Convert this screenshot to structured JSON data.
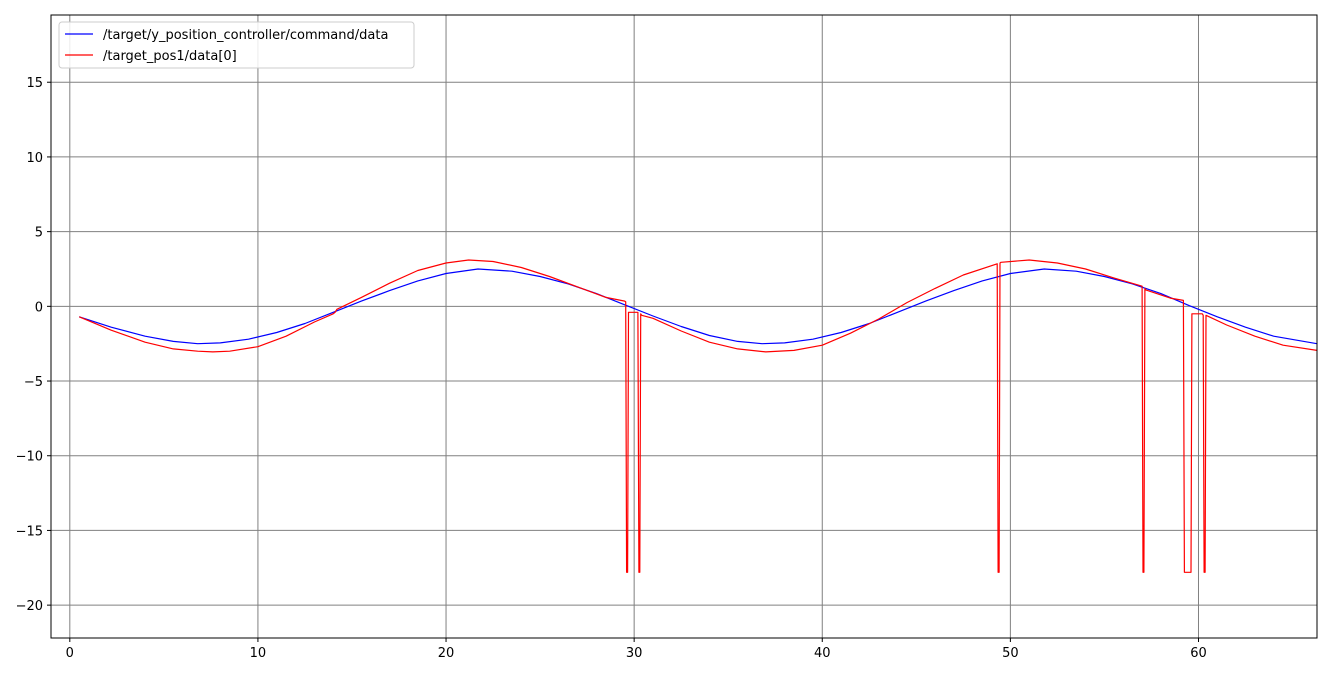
{
  "chart_data": {
    "type": "line",
    "title": "",
    "xlabel": "",
    "ylabel": "",
    "xlim": [
      -1,
      66.3
    ],
    "ylim": [
      -22.2,
      19.5
    ],
    "x_ticks": [
      0,
      10,
      20,
      30,
      40,
      50,
      60
    ],
    "x_tick_labels": [
      "0",
      "10",
      "20",
      "30",
      "40",
      "50",
      "60"
    ],
    "y_ticks": [
      15,
      10,
      5,
      0,
      -5,
      -10,
      -15,
      -20
    ],
    "y_tick_labels": [
      "15",
      "10",
      "5",
      "0",
      "−5",
      "−10",
      "−15",
      "−20"
    ],
    "grid": true,
    "grid_color": "#808080",
    "legend_position": "top-left",
    "series": [
      {
        "name": "/target/y_position_controller/command/data",
        "color": "#0000ff",
        "x": [
          0.5,
          2.2,
          4.0,
          5.5,
          6.8,
          8.0,
          9.5,
          11.0,
          12.5,
          14.0,
          15.5,
          17.0,
          18.5,
          20.0,
          21.7,
          23.5,
          25.0,
          26.5,
          28.0,
          29.5,
          31.0,
          32.5,
          34.0,
          35.5,
          36.8,
          38.0,
          39.5,
          41.0,
          42.5,
          44.0,
          45.5,
          47.0,
          48.5,
          50.0,
          51.8,
          53.5,
          55.0,
          56.5,
          58.0,
          59.5,
          61.0,
          62.5,
          64.0,
          66.3
        ],
        "y": [
          -0.7,
          -1.4,
          -2.0,
          -2.35,
          -2.5,
          -2.45,
          -2.2,
          -1.75,
          -1.15,
          -0.4,
          0.35,
          1.05,
          1.7,
          2.2,
          2.5,
          2.35,
          2.0,
          1.5,
          0.85,
          0.1,
          -0.65,
          -1.35,
          -1.95,
          -2.35,
          -2.5,
          -2.45,
          -2.2,
          -1.75,
          -1.15,
          -0.4,
          0.35,
          1.05,
          1.7,
          2.2,
          2.5,
          2.35,
          2.0,
          1.5,
          0.85,
          0.05,
          -0.7,
          -1.4,
          -2.0,
          -2.5
        ]
      },
      {
        "name": "/target_pos1/data[0]",
        "color": "#ff0000",
        "x": [
          0.5,
          2.2,
          4.0,
          5.5,
          6.8,
          7.6,
          8.5,
          10.0,
          11.5,
          13.0,
          14.0,
          14.1,
          14.2,
          15.5,
          17.0,
          18.5,
          20.0,
          21.2,
          22.5,
          24.0,
          25.5,
          27.0,
          28.5,
          29.5,
          29.55,
          29.6,
          29.65,
          29.7,
          29.75,
          30.2,
          30.25,
          30.3,
          30.35,
          30.4,
          31.0,
          32.5,
          34.0,
          35.5,
          37.0,
          38.5,
          40.0,
          41.5,
          43.0,
          44.5,
          46.0,
          47.5,
          49.3,
          49.35,
          49.4,
          49.45,
          49.5,
          51.0,
          52.5,
          54.0,
          55.5,
          57.0,
          57.05,
          57.1,
          57.15,
          57.2,
          58.5,
          59.2,
          59.25,
          59.3,
          59.6,
          59.65,
          59.7,
          60.2,
          60.25,
          60.3,
          60.35,
          60.4,
          61.5,
          63.0,
          64.5,
          66.3
        ],
        "y": [
          -0.7,
          -1.6,
          -2.4,
          -2.85,
          -3.0,
          -3.05,
          -3.0,
          -2.7,
          -2.0,
          -1.05,
          -0.5,
          -0.4,
          -0.2,
          0.6,
          1.55,
          2.4,
          2.9,
          3.1,
          3.0,
          2.6,
          2.0,
          1.3,
          0.6,
          0.35,
          0.3,
          -17.8,
          -17.8,
          -0.4,
          -0.4,
          -0.4,
          -17.8,
          -17.8,
          -0.5,
          -0.6,
          -0.8,
          -1.65,
          -2.4,
          -2.85,
          -3.05,
          -2.95,
          -2.6,
          -1.8,
          -0.85,
          0.25,
          1.2,
          2.1,
          2.85,
          -17.8,
          -17.8,
          2.9,
          2.95,
          3.1,
          2.9,
          2.5,
          1.9,
          1.35,
          -17.8,
          -17.8,
          1.2,
          1.1,
          0.55,
          0.4,
          -17.8,
          -17.8,
          -17.8,
          -0.5,
          -0.5,
          -0.5,
          -0.6,
          -17.8,
          -17.8,
          -0.6,
          -1.25,
          -2.0,
          -2.6,
          -2.95
        ]
      }
    ]
  }
}
